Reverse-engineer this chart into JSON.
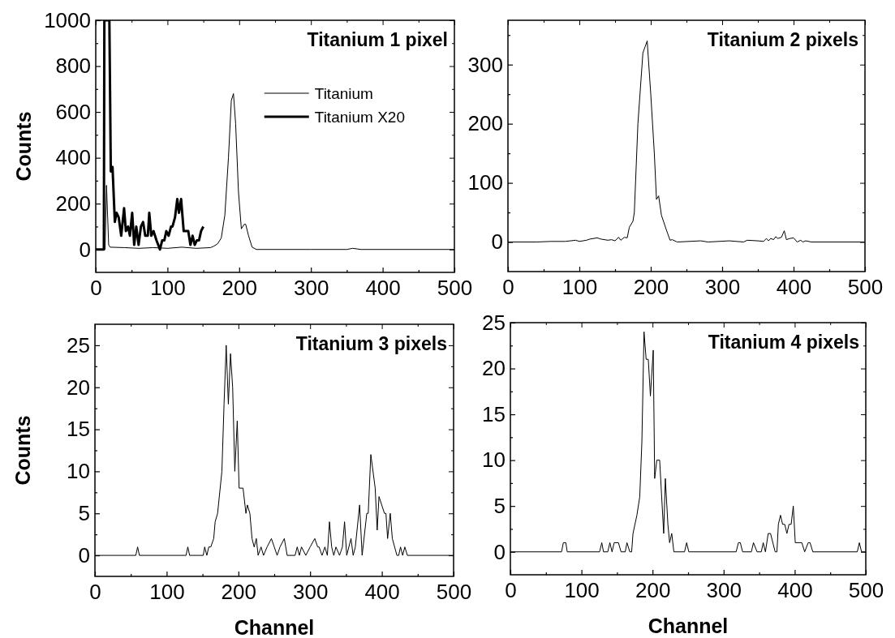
{
  "chart_data": [
    {
      "type": "line",
      "title": "Titanium 1 pixel",
      "ylabel": "Counts",
      "xlim": [
        0,
        500
      ],
      "ylim": [
        -100,
        1000
      ],
      "xticks": [
        0,
        {
          "value": 50,
          "label": null
        },
        100,
        {
          "value": 150,
          "label": null
        },
        200,
        {
          "value": 250,
          "label": null
        },
        300,
        {
          "value": 350,
          "label": null
        },
        400,
        {
          "value": 450,
          "label": null
        },
        500
      ],
      "yticks": [
        0,
        {
          "value": 100,
          "label": null
        },
        200,
        {
          "value": 300,
          "label": null
        },
        400,
        {
          "value": 500,
          "label": null
        },
        600,
        {
          "value": 700,
          "label": null
        },
        800,
        {
          "value": 900,
          "label": null
        },
        1000
      ],
      "legend": "top right",
      "line_style": "solid",
      "marker": "none",
      "grid": false,
      "series": [
        {
          "name": "Titanium",
          "color": "#000000",
          "x": [
            13,
            15,
            18,
            20,
            40,
            60,
            80,
            100,
            120,
            140,
            160,
            165,
            170,
            175,
            180,
            185,
            189,
            192,
            195,
            199,
            203,
            207,
            209,
            213,
            218,
            224,
            300,
            350,
            358,
            370,
            500
          ],
          "values": [
            0,
            280,
            20,
            10,
            8,
            5,
            8,
            5,
            10,
            5,
            8,
            15,
            25,
            50,
            150,
            400,
            650,
            680,
            550,
            250,
            90,
            110,
            110,
            60,
            10,
            0,
            0,
            0,
            5,
            0,
            0
          ]
        },
        {
          "name": "Titanium X20",
          "color": "#000000",
          "x": [
            0,
            11.3,
            12,
            19,
            21,
            23.4,
            26.6,
            29,
            32,
            35.5,
            39.5,
            42,
            45,
            47.6,
            50.8,
            53.6,
            56.5,
            59.7,
            63,
            66,
            69,
            72.6,
            74.6,
            77.4,
            80.6,
            84.7,
            89.5,
            92.7,
            95.6,
            98.4,
            101.6,
            105,
            107,
            110.5,
            113.7,
            116,
            119,
            122.6,
            129,
            132,
            135,
            138,
            141,
            144,
            146.8,
            150
          ],
          "values": [
            0,
            0,
            1000,
            1000,
            340,
            360,
            120,
            160,
            140,
            60,
            180,
            80,
            100,
            60,
            160,
            20,
            100,
            20,
            100,
            120,
            60,
            60,
            160,
            60,
            80,
            40,
            0,
            40,
            40,
            80,
            60,
            100,
            100,
            140,
            220,
            160,
            220,
            80,
            80,
            20,
            60,
            20,
            40,
            40,
            80,
            100
          ]
        }
      ]
    },
    {
      "type": "line",
      "title": "Titanium 2 pixels",
      "xlim": [
        0,
        500
      ],
      "ylim": [
        -50,
        375
      ],
      "xticks": [
        0,
        {
          "value": 50,
          "label": null
        },
        100,
        {
          "value": 150,
          "label": null
        },
        200,
        {
          "value": 250,
          "label": null
        },
        300,
        {
          "value": 350,
          "label": null
        },
        400,
        {
          "value": 450,
          "label": null
        },
        500
      ],
      "yticks": [
        0,
        {
          "value": 50,
          "label": null
        },
        100,
        {
          "value": 150,
          "label": null
        },
        200,
        {
          "value": 250,
          "label": null
        },
        300,
        {
          "value": 350,
          "label": null
        }
      ],
      "line_style": "solid",
      "marker": "none",
      "grid": false,
      "color": "#000000",
      "x": [
        0,
        40,
        60,
        80,
        95,
        100,
        110,
        115,
        125,
        130,
        140,
        145,
        150,
        155,
        158,
        163,
        167,
        170,
        175,
        177,
        182,
        189,
        192,
        195,
        200,
        205,
        208,
        211,
        215,
        222,
        227,
        230,
        237,
        270,
        280,
        310,
        330,
        335,
        350,
        358,
        362,
        365,
        368,
        372,
        375,
        378,
        383,
        387,
        390,
        395,
        400,
        405,
        410,
        413,
        417,
        425,
        500
      ],
      "values": [
        0,
        0,
        1,
        1,
        3,
        1,
        3,
        5,
        7,
        5,
        3,
        4,
        2,
        8,
        3,
        8,
        7,
        25,
        35,
        50,
        200,
        320,
        330,
        340,
        250,
        150,
        72,
        78,
        45,
        20,
        3,
        4,
        0,
        2,
        0,
        2,
        0,
        3,
        2,
        1,
        6,
        2,
        6,
        4,
        9,
        6,
        8,
        19,
        4,
        6,
        7,
        0,
        3,
        0,
        2,
        0,
        0
      ]
    },
    {
      "type": "line",
      "title": "Titanium 3 pixels",
      "xlabel": "Channel",
      "ylabel": "Counts",
      "xlim": [
        0,
        500
      ],
      "ylim": [
        -2.5,
        27.5
      ],
      "xticks": [
        0,
        {
          "value": 50,
          "label": null
        },
        100,
        {
          "value": 150,
          "label": null
        },
        200,
        {
          "value": 250,
          "label": null
        },
        300,
        {
          "value": 350,
          "label": null
        },
        400,
        {
          "value": 450,
          "label": null
        },
        500
      ],
      "yticks": [
        0,
        {
          "value": 2.5,
          "label": null
        },
        5,
        {
          "value": 7.5,
          "label": null
        },
        10,
        {
          "value": 12.5,
          "label": null
        },
        15,
        {
          "value": 17.5,
          "label": null
        },
        20,
        {
          "value": 22.5,
          "label": null
        },
        25
      ],
      "line_style": "solid",
      "marker": "none",
      "grid": false,
      "color": "#000000",
      "x": [
        0,
        57,
        59.5,
        62,
        127,
        129.5,
        132,
        151,
        153,
        156,
        158.7,
        161.5,
        165.6,
        167.6,
        171,
        177,
        180,
        183,
        186,
        189,
        192,
        195,
        198.4,
        201,
        206.5,
        210.5,
        212.5,
        216,
        219,
        222,
        225,
        227.5,
        231.6,
        235,
        240,
        246,
        250,
        254,
        258,
        264,
        268,
        279,
        282,
        285,
        288,
        294,
        300,
        306.5,
        310.5,
        312.5,
        316.6,
        320.6,
        324,
        327,
        330,
        333,
        336,
        341,
        345,
        348,
        351,
        357,
        360,
        363,
        369,
        372.5,
        379,
        381,
        384.6,
        390.7,
        393.5,
        396,
        403.6,
        405.7,
        408,
        411.7,
        414.6,
        421,
        423.5,
        426,
        429,
        432,
        435.6,
        500
      ],
      "values": [
        0,
        0,
        1,
        0,
        0,
        1,
        0,
        0,
        1,
        0,
        1,
        1,
        2,
        4,
        5,
        10,
        18,
        25,
        18,
        24,
        20,
        10,
        16,
        8,
        8,
        5,
        6,
        5,
        2,
        1,
        2,
        0,
        1,
        0,
        1,
        2,
        1,
        0,
        1,
        2,
        0,
        0,
        1,
        0,
        1,
        0,
        1,
        2,
        1,
        1,
        0,
        1,
        0,
        4,
        1,
        0,
        1,
        0,
        1,
        4,
        0,
        2,
        0,
        1,
        6,
        0,
        5,
        5,
        12,
        8,
        3,
        7,
        5,
        5,
        2,
        5,
        2,
        0,
        0,
        1,
        0,
        1,
        0,
        0
      ]
    },
    {
      "type": "line",
      "title": "Titanium 4 pixels",
      "xlabel": "Channel",
      "xlim": [
        0,
        500
      ],
      "ylim": [
        -2.5,
        25
      ],
      "xticks": [
        0,
        {
          "value": 50,
          "label": null
        },
        100,
        {
          "value": 150,
          "label": null
        },
        200,
        {
          "value": 250,
          "label": null
        },
        300,
        {
          "value": 350,
          "label": null
        },
        400,
        {
          "value": 450,
          "label": null
        },
        500
      ],
      "yticks": [
        0,
        {
          "value": 2.5,
          "label": null
        },
        5,
        {
          "value": 7.5,
          "label": null
        },
        10,
        {
          "value": 12.5,
          "label": null
        },
        15,
        {
          "value": 17.5,
          "label": null
        },
        20,
        {
          "value": 22.5,
          "label": null
        },
        25
      ],
      "line_style": "solid",
      "marker": "none",
      "grid": false,
      "color": "#000000",
      "x": [
        0,
        72,
        74.5,
        78,
        80,
        125.5,
        128.6,
        131,
        137,
        140,
        143,
        146,
        152,
        155.7,
        161.6,
        164,
        168,
        170.6,
        172.5,
        178,
        182,
        185,
        188,
        191,
        194,
        197,
        201,
        203,
        206,
        210,
        215.7,
        218,
        221.6,
        224,
        227,
        230,
        245,
        248,
        251,
        317.6,
        320.8,
        323.5,
        326.7,
        339,
        342,
        347,
        353,
        355.7,
        358.8,
        362.7,
        366,
        372.5,
        375,
        377,
        380,
        383,
        386,
        389,
        392,
        395,
        398,
        400.8,
        410,
        414,
        419,
        421.6,
        425.5,
        488,
        491,
        494,
        500
      ],
      "values": [
        0,
        0,
        1,
        1,
        0,
        0,
        1,
        0,
        0,
        1,
        0,
        1,
        1,
        0,
        0,
        1,
        0,
        0,
        2,
        4,
        6,
        12,
        24,
        21,
        21,
        17,
        22,
        8,
        10,
        10,
        2,
        8,
        3,
        1,
        2,
        0,
        0,
        1,
        0,
        0,
        1,
        1,
        0,
        0,
        1,
        0,
        0,
        1,
        0,
        2,
        2,
        0,
        0,
        3,
        4,
        3,
        3,
        2,
        3,
        3,
        5,
        1,
        1,
        0,
        1,
        1,
        0,
        0,
        1,
        0,
        0
      ]
    }
  ]
}
